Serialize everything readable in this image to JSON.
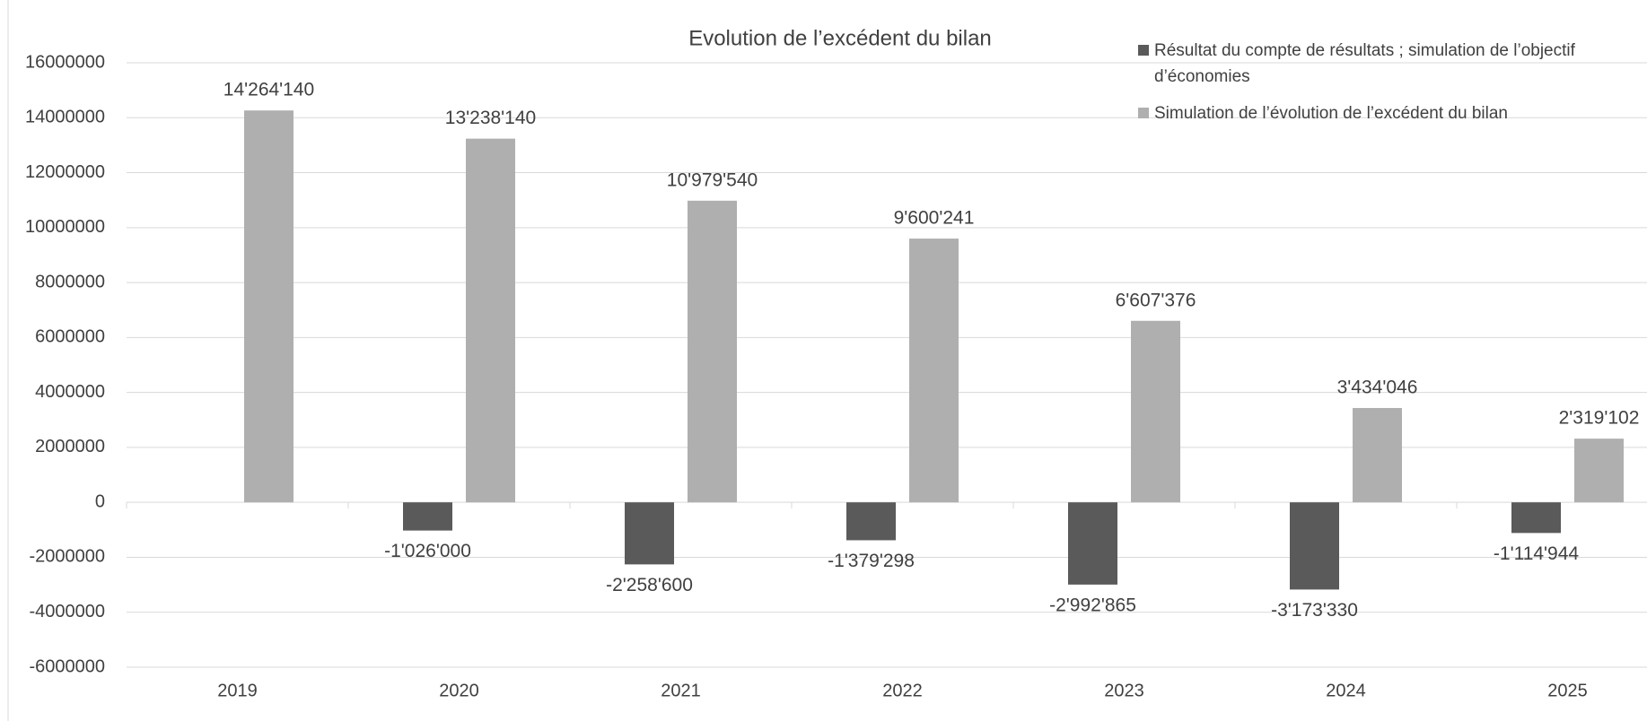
{
  "chart_data": {
    "type": "bar",
    "title": "Evolution de l’excédent du bilan",
    "categories": [
      "2019",
      "2020",
      "2021",
      "2022",
      "2023",
      "2024",
      "2025"
    ],
    "series": [
      {
        "name": "Résultat du compte de résultats ; simulation de l’objectif d’économies",
        "color": "#5a5a5a",
        "values": [
          null,
          -1026000,
          -2258600,
          -1379298,
          -2992865,
          -3173330,
          -1114944
        ],
        "value_labels": [
          null,
          "-1'026'000",
          "-2'258'600",
          "-1'379'298",
          "-2'992'865",
          "-3'173'330",
          "-1'114'944"
        ]
      },
      {
        "name": "Simulation de l’évolution de l’excédent du bilan",
        "color": "#afafaf",
        "values": [
          14264140,
          13238140,
          10979540,
          9600241,
          6607376,
          3434046,
          2319102
        ],
        "value_labels": [
          "14'264'140",
          "13'238'140",
          "10'979'540",
          "9'600'241",
          "6'607'376",
          "3'434'046",
          "2'319'102"
        ]
      }
    ],
    "ylim": [
      -6000000,
      16000000
    ],
    "yticks": [
      -6000000,
      -4000000,
      -2000000,
      0,
      2000000,
      4000000,
      6000000,
      8000000,
      10000000,
      12000000,
      14000000,
      16000000
    ],
    "grid": true,
    "legend": "top-right"
  }
}
